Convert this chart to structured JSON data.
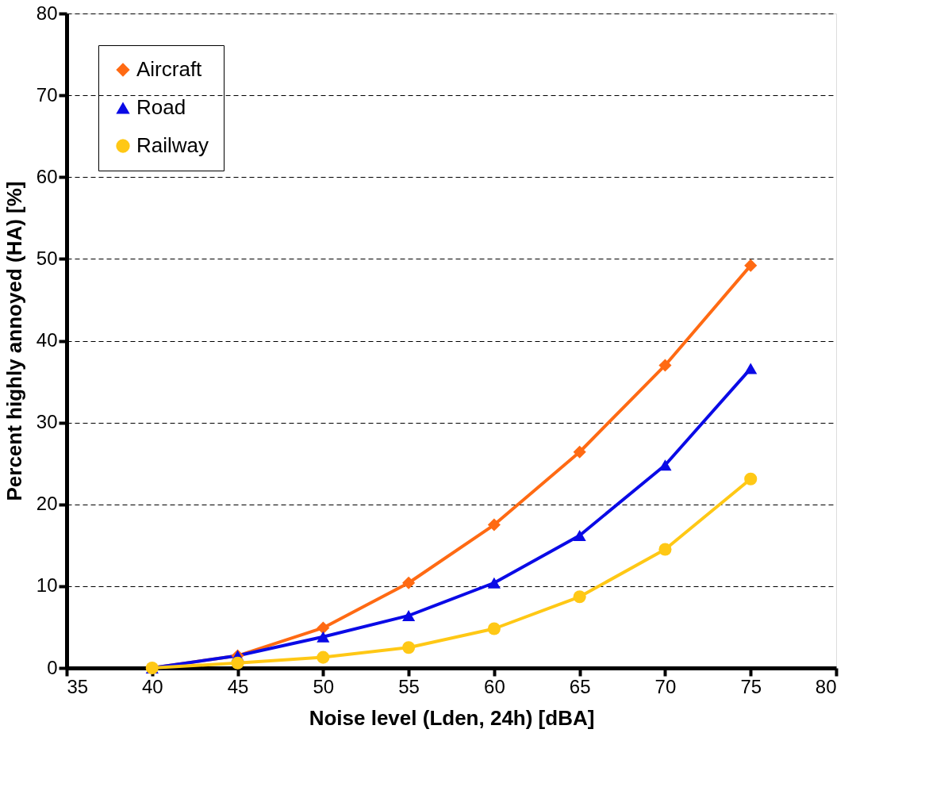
{
  "chart_data": {
    "type": "line",
    "xlabel": "Noise level (Lden, 24h) [dBA]",
    "ylabel": "Percent highly annoyed (HA) [%]",
    "x": [
      40,
      45,
      50,
      55,
      60,
      65,
      70,
      75
    ],
    "series": [
      {
        "name": "Aircraft",
        "color": "#ff6a13",
        "marker": "diamond",
        "values": [
          0,
          1.5,
          4.9,
          10.4,
          17.5,
          26.4,
          37,
          49.2
        ]
      },
      {
        "name": "Road",
        "color": "#0a0ae6",
        "marker": "triangle",
        "values": [
          0,
          1.5,
          3.8,
          6.4,
          10.4,
          16.2,
          24.8,
          36.6
        ]
      },
      {
        "name": "Railway",
        "color": "#ffc815",
        "marker": "circle",
        "values": [
          0,
          0.6,
          1.3,
          2.5,
          4.8,
          8.7,
          14.5,
          23.1
        ]
      }
    ],
    "xlim": [
      35,
      80
    ],
    "xticks": [
      35,
      40,
      45,
      50,
      55,
      60,
      65,
      70,
      75,
      80
    ],
    "ylim": [
      0,
      80
    ],
    "yticks": [
      0,
      10,
      20,
      30,
      40,
      50,
      60,
      70,
      80
    ],
    "grid": "y",
    "legend": "top left",
    "line_style": "solid"
  }
}
